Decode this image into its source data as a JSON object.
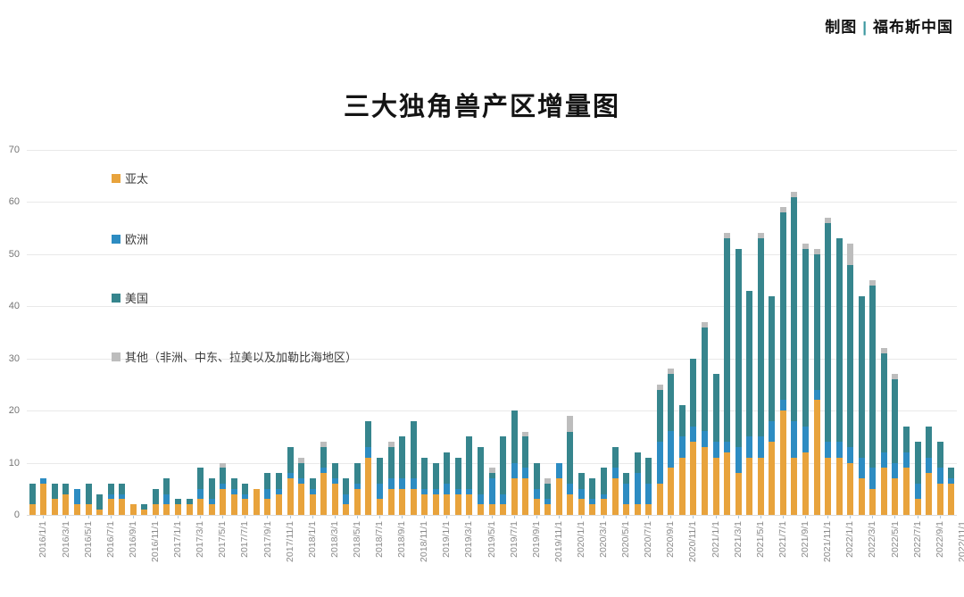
{
  "credit": {
    "label": "制图",
    "separator": "|",
    "brand": "福布斯中国",
    "separator_color": "#3E98A0"
  },
  "chart_data": {
    "type": "bar",
    "stacked": true,
    "title": "三大独角兽产区增量图",
    "xlabel": "",
    "ylabel": "",
    "ylim": [
      0,
      70
    ],
    "yticks": [
      0,
      10,
      20,
      30,
      40,
      50,
      60,
      70
    ],
    "grid": "horizontal",
    "legend_position": "inside-left-vertical",
    "x_tick_label_rotation": -90,
    "x_tick_label_step": 2,
    "categories": [
      "2016/1/1",
      "2016/2/1",
      "2016/3/1",
      "2016/4/1",
      "2016/5/1",
      "2016/6/1",
      "2016/7/1",
      "2016/8/1",
      "2016/9/1",
      "2016/10/1",
      "2016/11/1",
      "2016/12/1",
      "2017/1/1",
      "2017/2/1",
      "2017/3/1",
      "2017/4/1",
      "2017/5/1",
      "2017/6/1",
      "2017/7/1",
      "2017/8/1",
      "2017/9/1",
      "2017/10/1",
      "2017/11/1",
      "2017/12/1",
      "2018/1/1",
      "2018/2/1",
      "2018/3/1",
      "2018/4/1",
      "2018/5/1",
      "2018/6/1",
      "2018/7/1",
      "2018/8/1",
      "2018/9/1",
      "2018/10/1",
      "2018/11/1",
      "2018/12/1",
      "2019/1/1",
      "2019/2/1",
      "2019/3/1",
      "2019/4/1",
      "2019/5/1",
      "2019/6/1",
      "2019/7/1",
      "2019/8/1",
      "2019/9/1",
      "2019/10/1",
      "2019/11/1",
      "2019/12/1",
      "2020/1/1",
      "2020/2/1",
      "2020/3/1",
      "2020/4/1",
      "2020/5/1",
      "2020/6/1",
      "2020/7/1",
      "2020/8/1",
      "2020/9/1",
      "2020/10/1",
      "2020/11/1",
      "2020/12/1",
      "2021/1/1",
      "2021/2/1",
      "2021/3/1",
      "2021/4/1",
      "2021/5/1",
      "2021/6/1",
      "2021/7/1",
      "2021/8/1",
      "2021/9/1",
      "2021/10/1",
      "2021/11/1",
      "2021/12/1",
      "2022/1/1",
      "2022/2/1",
      "2022/3/1",
      "2022/4/1",
      "2022/5/1",
      "2022/6/1",
      "2022/7/1",
      "2022/8/1",
      "2022/9/1",
      "2022/10/1",
      "2022/11/1"
    ],
    "series": [
      {
        "name": "亚太",
        "color": "#E8A33C",
        "values": [
          2,
          6,
          3,
          4,
          2,
          2,
          1,
          3,
          3,
          2,
          1,
          2,
          2,
          2,
          2,
          3,
          2,
          5,
          4,
          3,
          5,
          3,
          4,
          7,
          6,
          4,
          8,
          6,
          2,
          5,
          11,
          3,
          5,
          5,
          5,
          4,
          4,
          4,
          4,
          4,
          2,
          2,
          2,
          7,
          7,
          3,
          2,
          7,
          4,
          3,
          2,
          3,
          7,
          2,
          2,
          2,
          6,
          9,
          11,
          14,
          13,
          11,
          12,
          8,
          11,
          11,
          14,
          20,
          11,
          12,
          22,
          11,
          11,
          10,
          7,
          5,
          9,
          7,
          9,
          3,
          8,
          6,
          6
        ]
      },
      {
        "name": "欧洲",
        "color": "#2D8CC2",
        "values": [
          0,
          1,
          0,
          0,
          3,
          0,
          0,
          1,
          1,
          0,
          0,
          0,
          2,
          0,
          0,
          2,
          1,
          1,
          1,
          1,
          0,
          2,
          1,
          1,
          1,
          1,
          1,
          1,
          2,
          1,
          2,
          3,
          2,
          2,
          2,
          1,
          1,
          2,
          1,
          1,
          2,
          5,
          2,
          3,
          2,
          2,
          1,
          3,
          2,
          2,
          1,
          1,
          2,
          4,
          6,
          4,
          8,
          7,
          4,
          3,
          3,
          3,
          2,
          5,
          4,
          4,
          4,
          2,
          7,
          5,
          2,
          3,
          3,
          3,
          4,
          4,
          3,
          3,
          3,
          3,
          3,
          3,
          1
        ]
      },
      {
        "name": "美国",
        "color": "#36858D",
        "values": [
          4,
          0,
          3,
          2,
          0,
          4,
          3,
          2,
          2,
          0,
          1,
          3,
          3,
          1,
          1,
          4,
          4,
          3,
          2,
          2,
          0,
          3,
          3,
          5,
          3,
          2,
          4,
          3,
          3,
          4,
          5,
          5,
          6,
          8,
          11,
          6,
          5,
          6,
          6,
          10,
          9,
          1,
          11,
          10,
          6,
          5,
          3,
          0,
          10,
          3,
          4,
          5,
          4,
          2,
          4,
          5,
          10,
          11,
          6,
          13,
          20,
          13,
          39,
          38,
          28,
          38,
          24,
          36,
          43,
          34,
          26,
          42,
          39,
          35,
          31,
          35,
          19,
          16,
          5,
          8,
          6,
          5,
          2
        ]
      },
      {
        "name": "其他（非洲、中东、拉美以及加勒比海地区）",
        "color": "#BDBDBD",
        "values": [
          0,
          0,
          0,
          0,
          0,
          0,
          0,
          0,
          0,
          0,
          0,
          0,
          0,
          0,
          0,
          0,
          0,
          1,
          0,
          0,
          0,
          0,
          0,
          0,
          1,
          0,
          1,
          0,
          0,
          0,
          0,
          0,
          1,
          0,
          0,
          0,
          0,
          0,
          0,
          0,
          0,
          1,
          0,
          0,
          1,
          0,
          1,
          0,
          3,
          0,
          0,
          0,
          0,
          0,
          0,
          0,
          1,
          1,
          0,
          0,
          1,
          0,
          1,
          0,
          0,
          1,
          0,
          1,
          1,
          1,
          1,
          1,
          0,
          4,
          0,
          1,
          1,
          1,
          0,
          0,
          0,
          0,
          0
        ]
      }
    ]
  }
}
